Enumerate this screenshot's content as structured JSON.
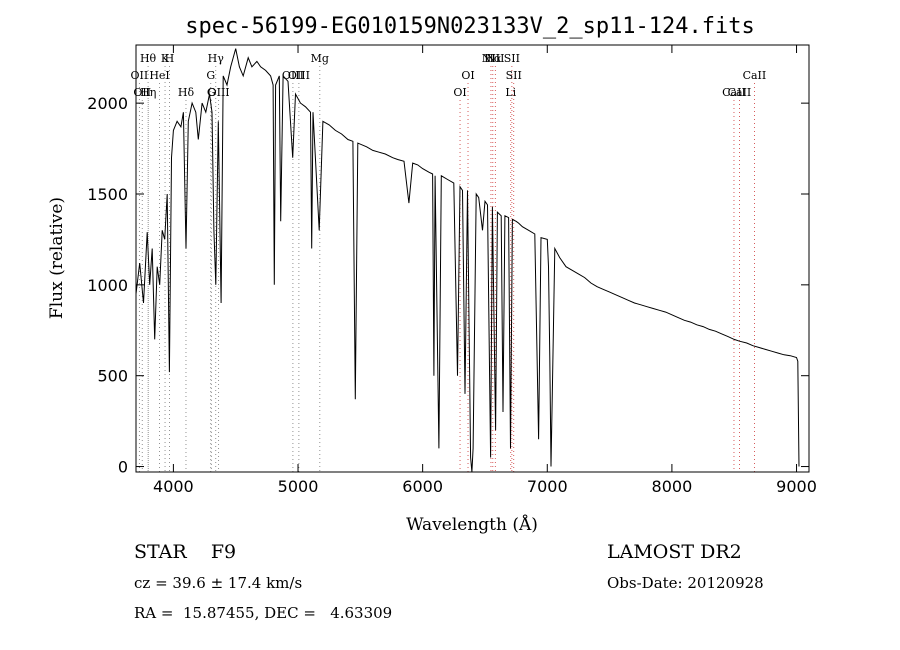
{
  "title": "spec-56199-EG010159N023133V_2_sp11-124.fits",
  "info": {
    "class_line": "STAR    F9",
    "cz_line": "cz = 39.6 ± 17.4 km/s",
    "radec_line": "RA =  15.87455, DEC =   4.63309",
    "survey": "LAMOST DR2",
    "obs_date": "Obs-Date: 20120928"
  },
  "chart_data": {
    "type": "line",
    "title": "spec-56199-EG010159N023133V_2_sp11-124.fits",
    "xlabel": "Wavelength (Å)",
    "ylabel": "Flux (relative)",
    "xlim": [
      3700,
      9100
    ],
    "ylim": [
      -30,
      2320
    ],
    "x_ticks": [
      4000,
      5000,
      6000,
      7000,
      8000,
      9000
    ],
    "y_ticks": [
      0,
      500,
      1000,
      1500,
      2000
    ],
    "grid": false,
    "legend": "none",
    "series": [
      {
        "color": "#000000",
        "points": [
          [
            3700,
            950
          ],
          [
            3730,
            1120
          ],
          [
            3760,
            900
          ],
          [
            3790,
            1290
          ],
          [
            3810,
            1000
          ],
          [
            3830,
            1200
          ],
          [
            3850,
            700
          ],
          [
            3870,
            1100
          ],
          [
            3890,
            1000
          ],
          [
            3910,
            1300
          ],
          [
            3930,
            1250
          ],
          [
            3950,
            1500
          ],
          [
            3968,
            520
          ],
          [
            3985,
            1700
          ],
          [
            4000,
            1850
          ],
          [
            4030,
            1900
          ],
          [
            4060,
            1870
          ],
          [
            4080,
            1950
          ],
          [
            4101,
            1200
          ],
          [
            4120,
            1900
          ],
          [
            4150,
            2000
          ],
          [
            4180,
            1950
          ],
          [
            4200,
            1800
          ],
          [
            4230,
            2000
          ],
          [
            4260,
            1950
          ],
          [
            4290,
            2050
          ],
          [
            4310,
            1950
          ],
          [
            4325,
            1300
          ],
          [
            4340,
            1000
          ],
          [
            4360,
            1900
          ],
          [
            4383,
            900
          ],
          [
            4400,
            2150
          ],
          [
            4430,
            2100
          ],
          [
            4460,
            2200
          ],
          [
            4500,
            2300
          ],
          [
            4530,
            2200
          ],
          [
            4560,
            2150
          ],
          [
            4600,
            2250
          ],
          [
            4630,
            2200
          ],
          [
            4670,
            2230
          ],
          [
            4700,
            2200
          ],
          [
            4740,
            2180
          ],
          [
            4780,
            2150
          ],
          [
            4800,
            2100
          ],
          [
            4810,
            1000
          ],
          [
            4820,
            2100
          ],
          [
            4850,
            2150
          ],
          [
            4861,
            1350
          ],
          [
            4880,
            2150
          ],
          [
            4920,
            2120
          ],
          [
            4957,
            1700
          ],
          [
            4980,
            2050
          ],
          [
            5020,
            2000
          ],
          [
            5060,
            1980
          ],
          [
            5100,
            1950
          ],
          [
            5110,
            1200
          ],
          [
            5120,
            1950
          ],
          [
            5170,
            1300
          ],
          [
            5200,
            1900
          ],
          [
            5250,
            1880
          ],
          [
            5300,
            1850
          ],
          [
            5350,
            1830
          ],
          [
            5400,
            1800
          ],
          [
            5440,
            1790
          ],
          [
            5460,
            370
          ],
          [
            5480,
            1780
          ],
          [
            5550,
            1760
          ],
          [
            5600,
            1740
          ],
          [
            5650,
            1730
          ],
          [
            5700,
            1720
          ],
          [
            5760,
            1700
          ],
          [
            5800,
            1690
          ],
          [
            5850,
            1680
          ],
          [
            5890,
            1450
          ],
          [
            5920,
            1670
          ],
          [
            5960,
            1660
          ],
          [
            6000,
            1640
          ],
          [
            6050,
            1620
          ],
          [
            6080,
            1610
          ],
          [
            6090,
            500
          ],
          [
            6100,
            1600
          ],
          [
            6130,
            100
          ],
          [
            6150,
            1600
          ],
          [
            6200,
            1580
          ],
          [
            6250,
            1560
          ],
          [
            6280,
            500
          ],
          [
            6300,
            1540
          ],
          [
            6320,
            1520
          ],
          [
            6340,
            400
          ],
          [
            6360,
            1520
          ],
          [
            6385,
            50
          ],
          [
            6395,
            -30
          ],
          [
            6405,
            100
          ],
          [
            6430,
            1500
          ],
          [
            6450,
            1480
          ],
          [
            6480,
            1300
          ],
          [
            6500,
            1460
          ],
          [
            6520,
            1440
          ],
          [
            6545,
            50
          ],
          [
            6560,
            1430
          ],
          [
            6585,
            200
          ],
          [
            6600,
            1400
          ],
          [
            6630,
            1380
          ],
          [
            6645,
            300
          ],
          [
            6660,
            1380
          ],
          [
            6690,
            1370
          ],
          [
            6705,
            100
          ],
          [
            6720,
            1360
          ],
          [
            6750,
            1350
          ],
          [
            6770,
            1340
          ],
          [
            6800,
            1320
          ],
          [
            6850,
            1300
          ],
          [
            6900,
            1280
          ],
          [
            6930,
            150
          ],
          [
            6950,
            1260
          ],
          [
            7000,
            1250
          ],
          [
            7010,
            1100
          ],
          [
            7020,
            600
          ],
          [
            7030,
            0
          ],
          [
            7040,
            400
          ],
          [
            7060,
            1200
          ],
          [
            7100,
            1150
          ],
          [
            7150,
            1100
          ],
          [
            7200,
            1080
          ],
          [
            7250,
            1060
          ],
          [
            7300,
            1040
          ],
          [
            7350,
            1010
          ],
          [
            7400,
            990
          ],
          [
            7450,
            975
          ],
          [
            7500,
            960
          ],
          [
            7550,
            945
          ],
          [
            7600,
            930
          ],
          [
            7650,
            915
          ],
          [
            7700,
            900
          ],
          [
            7750,
            890
          ],
          [
            7800,
            880
          ],
          [
            7850,
            870
          ],
          [
            7900,
            860
          ],
          [
            7950,
            850
          ],
          [
            8000,
            835
          ],
          [
            8050,
            820
          ],
          [
            8100,
            805
          ],
          [
            8150,
            795
          ],
          [
            8200,
            780
          ],
          [
            8250,
            770
          ],
          [
            8300,
            755
          ],
          [
            8350,
            745
          ],
          [
            8400,
            730
          ],
          [
            8450,
            715
          ],
          [
            8500,
            700
          ],
          [
            8542,
            690
          ],
          [
            8600,
            680
          ],
          [
            8650,
            665
          ],
          [
            8700,
            655
          ],
          [
            8750,
            645
          ],
          [
            8800,
            635
          ],
          [
            8850,
            625
          ],
          [
            8900,
            615
          ],
          [
            8950,
            610
          ],
          [
            9000,
            600
          ],
          [
            9010,
            580
          ],
          [
            9020,
            0
          ]
        ]
      }
    ],
    "line_markers": [
      {
        "wl": 3727,
        "label": "OII",
        "row": 2,
        "color": "#777777"
      },
      {
        "wl": 3750,
        "label": "OII",
        "row": 3,
        "color": "#777777"
      },
      {
        "wl": 3798,
        "label": "Hη",
        "row": 3,
        "color": "#777777"
      },
      {
        "wl": 3797,
        "label": "Hθ",
        "row": 1,
        "color": "#777777"
      },
      {
        "wl": 3889,
        "label": "HeI",
        "row": 2,
        "color": "#777777"
      },
      {
        "wl": 3933,
        "label": "K",
        "row": 1,
        "color": "#777777"
      },
      {
        "wl": 3968,
        "label": "H",
        "row": 1,
        "color": "#777777"
      },
      {
        "wl": 4101,
        "label": "Hδ",
        "row": 3,
        "color": "#777777"
      },
      {
        "wl": 4300,
        "label": "G",
        "row": 2,
        "color": "#777777"
      },
      {
        "wl": 4304,
        "label": "G",
        "row": 3,
        "color": "#777777"
      },
      {
        "wl": 4340,
        "label": "Hγ",
        "row": 1,
        "color": "#777777"
      },
      {
        "wl": 4363,
        "label": "OIII",
        "row": 3,
        "color": "#777777"
      },
      {
        "wl": 4959,
        "label": "OIII",
        "row": 2,
        "color": "#777777"
      },
      {
        "wl": 5007,
        "label": "OIII",
        "row": 2,
        "color": "#777777"
      },
      {
        "wl": 5175,
        "label": "Mg",
        "row": 1,
        "color": "#777777"
      },
      {
        "wl": 6300,
        "label": "OI",
        "row": 3,
        "color": "#cc3333"
      },
      {
        "wl": 6364,
        "label": "OI",
        "row": 2,
        "color": "#cc3333"
      },
      {
        "wl": 6548,
        "label": "NII",
        "row": 1,
        "color": "#cc3333"
      },
      {
        "wl": 6563,
        "label": "Hα",
        "row": 1,
        "color": "#cc3333"
      },
      {
        "wl": 6583,
        "label": "NII",
        "row": 1,
        "color": "#cc3333"
      },
      {
        "wl": 6707,
        "label": "Li",
        "row": 3,
        "color": "#cc3333"
      },
      {
        "wl": 6716,
        "label": "SII",
        "row": 1,
        "color": "#cc3333"
      },
      {
        "wl": 6731,
        "label": "SII",
        "row": 2,
        "color": "#cc3333"
      },
      {
        "wl": 8498,
        "label": "CaII",
        "row": 3,
        "color": "#cc3333"
      },
      {
        "wl": 8542,
        "label": "CaII",
        "row": 3,
        "color": "#cc3333"
      },
      {
        "wl": 8662,
        "label": "CaII",
        "row": 2,
        "color": "#cc3333"
      }
    ]
  }
}
